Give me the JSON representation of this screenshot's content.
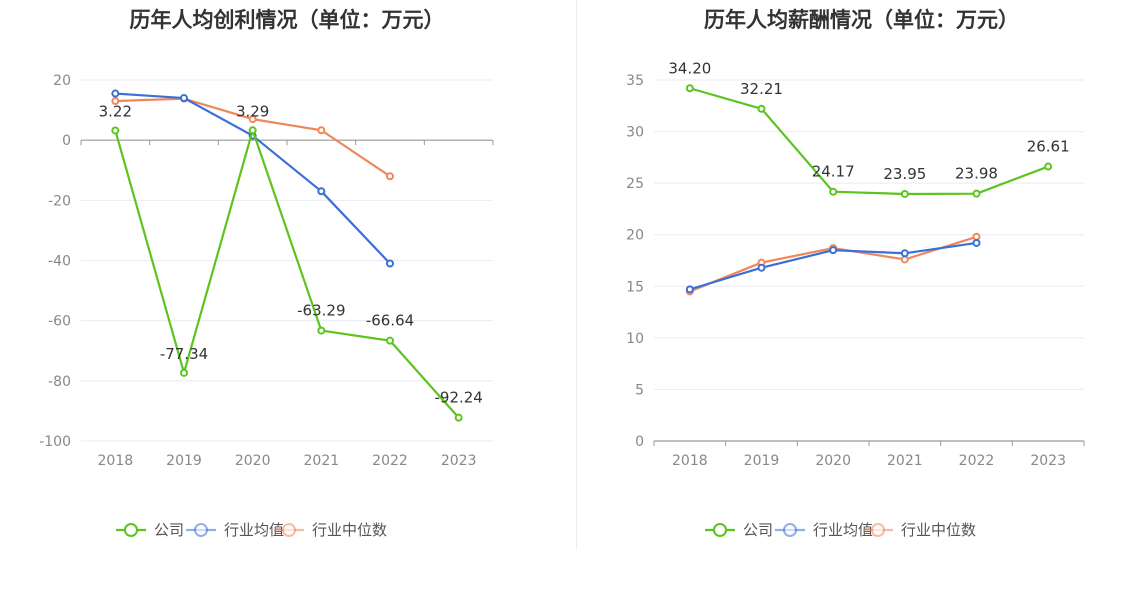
{
  "chart_data": [
    {
      "type": "line",
      "title": "历年人均创利情况（单位：万元）",
      "categories": [
        "2018",
        "2019",
        "2020",
        "2021",
        "2022",
        "2023"
      ],
      "ylim": [
        -100,
        20
      ],
      "yticks": [
        20,
        0,
        -20,
        -40,
        -60,
        -80,
        -100
      ],
      "grid": true,
      "legend": "bottom",
      "series": [
        {
          "name": "公司",
          "color": "#5cc41e",
          "values": [
            3.22,
            -77.34,
            3.29,
            -63.29,
            -66.64,
            -92.24
          ],
          "labels": [
            "3.22",
            "-77.34",
            "3.29",
            "-63.29",
            "-66.64",
            "-92.24"
          ]
        },
        {
          "name": "行业均值",
          "color": "#3b6fd8",
          "values": [
            15.5,
            14.0,
            1.5,
            -17.0,
            -41.0,
            null
          ]
        },
        {
          "name": "行业中位数",
          "color": "#f0875a",
          "values": [
            13.0,
            13.8,
            7.0,
            3.3,
            -12.0,
            null
          ]
        }
      ]
    },
    {
      "type": "line",
      "title": "历年人均薪酬情况（单位：万元）",
      "categories": [
        "2018",
        "2019",
        "2020",
        "2021",
        "2022",
        "2023"
      ],
      "ylim": [
        0,
        35
      ],
      "yticks": [
        35,
        30,
        25,
        20,
        15,
        10,
        5,
        0
      ],
      "grid": true,
      "legend": "bottom",
      "series": [
        {
          "name": "公司",
          "color": "#5cc41e",
          "values": [
            34.2,
            32.21,
            24.17,
            23.95,
            23.98,
            26.61
          ],
          "labels": [
            "34.20",
            "32.21",
            "24.17",
            "23.95",
            "23.98",
            "26.61"
          ]
        },
        {
          "name": "行业均值",
          "color": "#3b6fd8",
          "values": [
            14.7,
            16.8,
            18.5,
            18.2,
            19.2,
            null
          ]
        },
        {
          "name": "行业中位数",
          "color": "#f0875a",
          "values": [
            14.5,
            17.3,
            18.7,
            17.6,
            19.8,
            null
          ]
        }
      ]
    }
  ]
}
